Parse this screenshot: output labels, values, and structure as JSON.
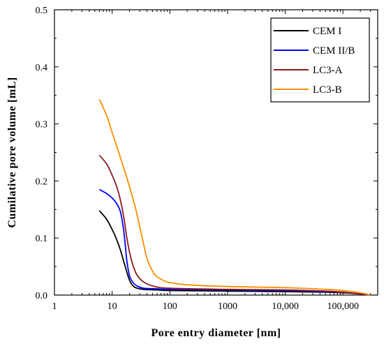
{
  "chart_data": {
    "type": "line",
    "xlabel": "Pore entry diameter [nm]",
    "ylabel": "Cumilative pore volume [mL]",
    "x_scale": "log",
    "xlim": [
      1,
      400000
    ],
    "ylim": [
      0,
      0.5
    ],
    "x_ticks": [
      1,
      10,
      100,
      1000,
      10000,
      100000
    ],
    "x_tick_labels": [
      "1",
      "10",
      "100",
      "1000",
      "10,000",
      "100,000"
    ],
    "y_ticks": [
      0,
      0.1,
      0.2,
      0.3,
      0.4,
      0.5
    ],
    "y_tick_labels": [
      "0.0",
      "0.1",
      "0.2",
      "0.3",
      "0.4",
      "0.5"
    ],
    "grid": false,
    "legend_position": "top-right",
    "series": [
      {
        "name": "CEM I",
        "color": "#000000",
        "points": [
          [
            6,
            0.148
          ],
          [
            8,
            0.133
          ],
          [
            10,
            0.115
          ],
          [
            12,
            0.097
          ],
          [
            14,
            0.078
          ],
          [
            16,
            0.058
          ],
          [
            18,
            0.04
          ],
          [
            20,
            0.026
          ],
          [
            23,
            0.016
          ],
          [
            27,
            0.012
          ],
          [
            35,
            0.01
          ],
          [
            60,
            0.009
          ],
          [
            100,
            0.008
          ],
          [
            1000,
            0.007
          ],
          [
            10000,
            0.006
          ],
          [
            50000,
            0.005
          ],
          [
            100000,
            0.004
          ],
          [
            200000,
            0.002
          ],
          [
            300000,
            0.0
          ]
        ]
      },
      {
        "name": "CEM II/B",
        "color": "#0000ff",
        "points": [
          [
            6,
            0.185
          ],
          [
            8,
            0.178
          ],
          [
            10,
            0.17
          ],
          [
            12,
            0.16
          ],
          [
            14,
            0.145
          ],
          [
            16,
            0.11
          ],
          [
            18,
            0.06
          ],
          [
            20,
            0.034
          ],
          [
            23,
            0.022
          ],
          [
            27,
            0.016
          ],
          [
            35,
            0.012
          ],
          [
            60,
            0.011
          ],
          [
            100,
            0.01
          ],
          [
            1000,
            0.009
          ],
          [
            10000,
            0.008
          ],
          [
            50000,
            0.006
          ],
          [
            100000,
            0.005
          ],
          [
            200000,
            0.002
          ],
          [
            300000,
            0.0
          ]
        ]
      },
      {
        "name": "LC3-A",
        "color": "#8b1a1a",
        "points": [
          [
            6,
            0.245
          ],
          [
            8,
            0.23
          ],
          [
            10,
            0.21
          ],
          [
            12,
            0.19
          ],
          [
            14,
            0.165
          ],
          [
            16,
            0.135
          ],
          [
            18,
            0.1
          ],
          [
            20,
            0.075
          ],
          [
            23,
            0.052
          ],
          [
            27,
            0.035
          ],
          [
            35,
            0.023
          ],
          [
            50,
            0.016
          ],
          [
            100,
            0.012
          ],
          [
            1000,
            0.01
          ],
          [
            10000,
            0.009
          ],
          [
            50000,
            0.007
          ],
          [
            100000,
            0.005
          ],
          [
            200000,
            0.002
          ],
          [
            300000,
            0.0
          ]
        ]
      },
      {
        "name": "LC3-B",
        "color": "#ff8c00",
        "points": [
          [
            6,
            0.343
          ],
          [
            8,
            0.315
          ],
          [
            10,
            0.285
          ],
          [
            14,
            0.24
          ],
          [
            20,
            0.19
          ],
          [
            25,
            0.155
          ],
          [
            30,
            0.12
          ],
          [
            35,
            0.09
          ],
          [
            40,
            0.065
          ],
          [
            50,
            0.042
          ],
          [
            60,
            0.032
          ],
          [
            80,
            0.025
          ],
          [
            100,
            0.022
          ],
          [
            200,
            0.018
          ],
          [
            1000,
            0.015
          ],
          [
            10000,
            0.013
          ],
          [
            50000,
            0.01
          ],
          [
            100000,
            0.008
          ],
          [
            200000,
            0.004
          ],
          [
            300000,
            0.0
          ]
        ]
      }
    ]
  }
}
